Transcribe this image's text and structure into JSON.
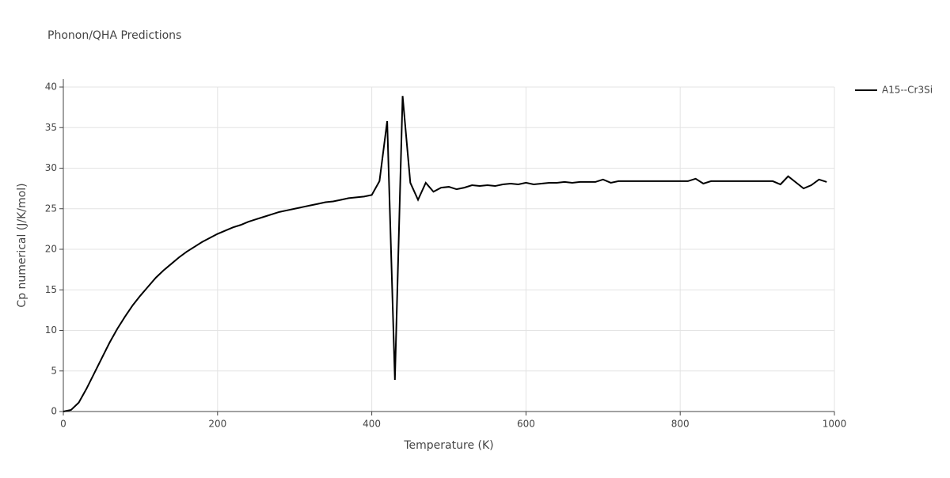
{
  "chart_data": {
    "type": "line",
    "title": "Phonon/QHA Predictions",
    "xlabel": "Temperature (K)",
    "ylabel": "Cp numerical (J/K/mol)",
    "x": [
      0,
      10,
      20,
      30,
      40,
      50,
      60,
      70,
      80,
      90,
      100,
      110,
      120,
      130,
      140,
      150,
      160,
      170,
      180,
      190,
      200,
      210,
      220,
      230,
      240,
      250,
      260,
      270,
      280,
      290,
      300,
      310,
      320,
      330,
      340,
      350,
      360,
      370,
      380,
      390,
      400,
      410,
      420,
      430,
      440,
      450,
      460,
      470,
      480,
      490,
      500,
      510,
      520,
      530,
      540,
      550,
      560,
      570,
      580,
      590,
      600,
      610,
      620,
      630,
      640,
      650,
      660,
      670,
      680,
      690,
      700,
      710,
      720,
      810,
      820,
      830,
      840,
      920,
      930,
      940,
      960,
      970,
      980,
      990
    ],
    "series": [
      {
        "name": "A15--Cr3Si",
        "color": "#000000",
        "values": [
          0,
          0.2,
          1.1,
          2.8,
          4.7,
          6.6,
          8.5,
          10.2,
          11.7,
          13.1,
          14.3,
          15.4,
          16.5,
          17.4,
          18.2,
          19.0,
          19.7,
          20.3,
          20.9,
          21.4,
          21.9,
          22.3,
          22.7,
          23.0,
          23.4,
          23.7,
          24.0,
          24.3,
          24.6,
          24.8,
          25.0,
          25.2,
          25.4,
          25.6,
          25.8,
          25.9,
          26.1,
          26.3,
          26.4,
          26.5,
          26.7,
          28.4,
          35.8,
          3.9,
          38.9,
          28.2,
          26.1,
          28.2,
          27.1,
          27.6,
          27.7,
          27.4,
          27.6,
          27.9,
          27.8,
          27.9,
          27.8,
          28.0,
          28.1,
          28.0,
          28.2,
          28.0,
          28.1,
          28.2,
          28.2,
          28.3,
          28.2,
          28.3,
          28.3,
          28.3,
          28.6,
          28.2,
          28.4,
          28.4,
          28.7,
          28.1,
          28.4,
          28.4,
          28.0,
          29.0,
          27.5,
          27.9,
          28.6,
          28.3
        ]
      }
    ],
    "xlim": [
      0,
      1000
    ],
    "xticks": [
      0,
      200,
      400,
      600,
      800,
      1000
    ],
    "ylim": [
      0,
      40
    ],
    "yticks": [
      0,
      5,
      10,
      15,
      20,
      25,
      30,
      35,
      40
    ],
    "grid": true,
    "legend": "right"
  }
}
